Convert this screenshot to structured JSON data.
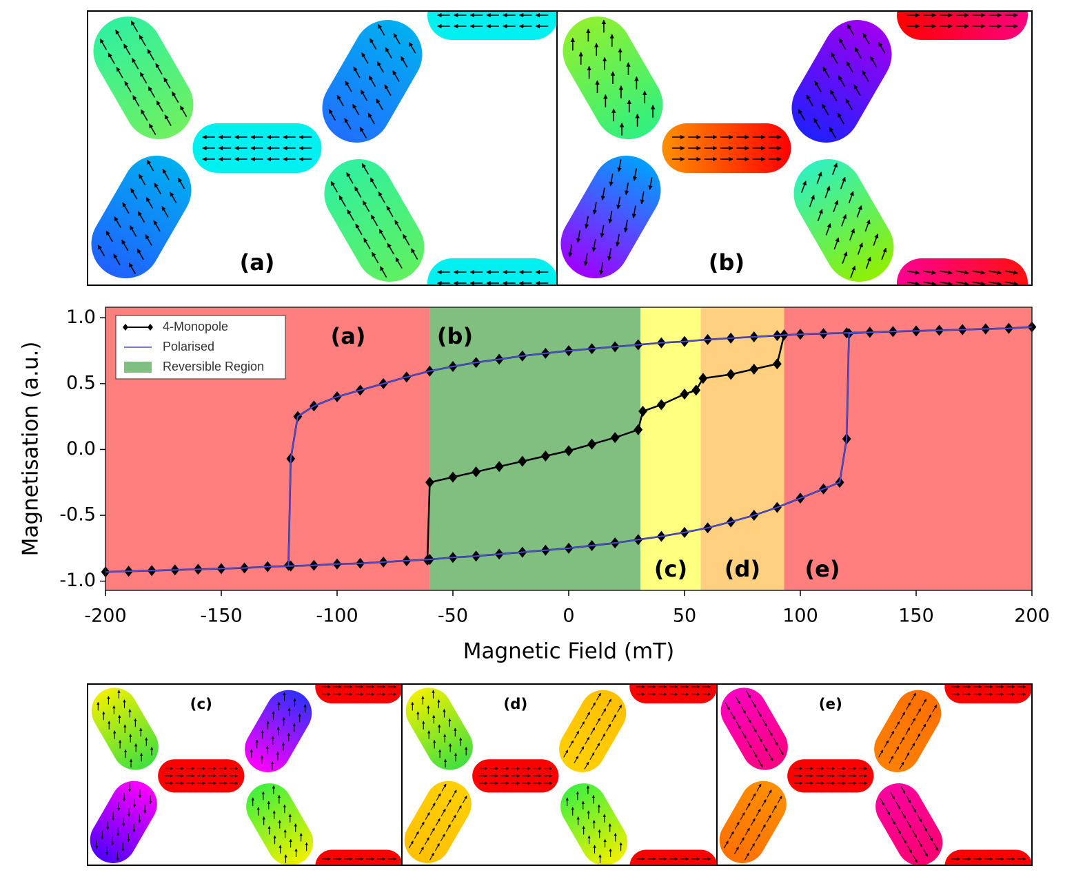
{
  "chart_data": {
    "type": "line",
    "xlabel": "Magnetic Field (mT)",
    "ylabel": "Magnetisation (a.u.)",
    "xlim": [
      -200,
      200
    ],
    "xticks": [
      -200,
      -150,
      -100,
      -50,
      0,
      50,
      100,
      150,
      200
    ],
    "ylim": [
      -1.07,
      1.08
    ],
    "yticks": [
      {
        "value": -1,
        "label": "-1.0"
      },
      -0.5,
      {
        "value": 0,
        "label": "0.0"
      },
      0.5,
      {
        "value": 1,
        "label": "1.0"
      }
    ],
    "legend": "upper left",
    "regions": [
      {
        "x0": -200,
        "x1": -60,
        "color": "#ff7f7f"
      },
      {
        "x0": -60,
        "x1": 31,
        "color": "#80bf80",
        "name": "Reversible Region"
      },
      {
        "x0": 31,
        "x1": 57,
        "color": "#ffff80"
      },
      {
        "x0": 57,
        "x1": 93,
        "color": "#ffd080"
      },
      {
        "x0": 93,
        "x1": 200,
        "color": "#ff7f7f"
      }
    ],
    "annotations": [
      "(a)",
      "(b)",
      "(c)",
      "(d)",
      "(e)"
    ],
    "series": [
      {
        "name": "4-Monopole",
        "color": "#000000",
        "marker": "diamond",
        "x": [
          -200,
          -190,
          -180,
          -170,
          -160,
          -150,
          -140,
          -130,
          -120,
          -110,
          -100,
          -90,
          -80,
          -70,
          -60,
          -50,
          -40,
          -30,
          -20,
          -10,
          0,
          10,
          20,
          30,
          40,
          50,
          60,
          70,
          80,
          90,
          100,
          110,
          117,
          120,
          121,
          130,
          140,
          150,
          160,
          170,
          180,
          190,
          200,
          null,
          190,
          180,
          170,
          160,
          150,
          140,
          130,
          120,
          110,
          100,
          90,
          80,
          70,
          60,
          50,
          40,
          30,
          20,
          10,
          0,
          -10,
          -20,
          -30,
          -40,
          -50,
          -60,
          -70,
          -80,
          -90,
          -100,
          -110,
          -117,
          -120,
          -121,
          null,
          -61,
          -60,
          -50,
          -40,
          -30,
          -20,
          -10,
          0,
          10,
          20,
          30,
          32,
          40,
          50,
          55,
          58,
          70,
          80,
          90,
          93
        ],
        "values": [
          -0.93,
          -0.925,
          -0.92,
          -0.915,
          -0.91,
          -0.905,
          -0.9,
          -0.89,
          -0.885,
          -0.88,
          -0.87,
          -0.865,
          -0.855,
          -0.845,
          -0.835,
          -0.82,
          -0.81,
          -0.795,
          -0.78,
          -0.765,
          -0.75,
          -0.73,
          -0.71,
          -0.685,
          -0.66,
          -0.63,
          -0.595,
          -0.55,
          -0.5,
          -0.44,
          -0.37,
          -0.3,
          -0.25,
          0.08,
          0.88,
          0.89,
          0.895,
          0.9,
          0.905,
          0.91,
          0.915,
          0.92,
          0.93,
          null,
          0.92,
          0.915,
          0.91,
          0.905,
          0.9,
          0.895,
          0.89,
          0.885,
          0.88,
          0.875,
          0.865,
          0.855,
          0.845,
          0.835,
          0.82,
          0.81,
          0.795,
          0.78,
          0.765,
          0.75,
          0.73,
          0.71,
          0.685,
          0.66,
          0.63,
          0.595,
          0.55,
          0.5,
          0.45,
          0.4,
          0.33,
          0.25,
          -0.07,
          -0.88,
          null,
          -0.84,
          -0.25,
          -0.21,
          -0.17,
          -0.13,
          -0.09,
          -0.05,
          -0.01,
          0.04,
          0.09,
          0.15,
          0.29,
          0.34,
          0.42,
          0.45,
          0.54,
          0.57,
          0.61,
          0.65,
          0.87
        ]
      },
      {
        "name": "Polarised",
        "color": "#4b4bdc",
        "x": [
          -200,
          -190,
          -180,
          -170,
          -160,
          -150,
          -140,
          -130,
          -120,
          -110,
          -100,
          -90,
          -80,
          -70,
          -60,
          -50,
          -40,
          -30,
          -20,
          -10,
          0,
          10,
          20,
          30,
          40,
          50,
          60,
          70,
          80,
          90,
          100,
          110,
          117,
          120,
          121,
          130,
          140,
          150,
          160,
          170,
          180,
          190,
          200,
          null,
          190,
          180,
          170,
          160,
          150,
          140,
          130,
          120,
          110,
          100,
          90,
          80,
          70,
          60,
          50,
          40,
          30,
          20,
          10,
          0,
          -10,
          -20,
          -30,
          -40,
          -50,
          -60,
          -70,
          -80,
          -90,
          -100,
          -110,
          -117,
          -120,
          -121
        ],
        "values": [
          -0.93,
          -0.925,
          -0.92,
          -0.915,
          -0.91,
          -0.905,
          -0.9,
          -0.89,
          -0.885,
          -0.88,
          -0.87,
          -0.865,
          -0.855,
          -0.845,
          -0.835,
          -0.82,
          -0.81,
          -0.795,
          -0.78,
          -0.765,
          -0.75,
          -0.73,
          -0.71,
          -0.685,
          -0.66,
          -0.63,
          -0.595,
          -0.55,
          -0.5,
          -0.44,
          -0.37,
          -0.3,
          -0.25,
          0.08,
          0.88,
          0.89,
          0.895,
          0.9,
          0.905,
          0.91,
          0.915,
          0.92,
          0.93,
          null,
          0.92,
          0.915,
          0.91,
          0.905,
          0.9,
          0.895,
          0.89,
          0.885,
          0.88,
          0.875,
          0.865,
          0.855,
          0.845,
          0.835,
          0.82,
          0.81,
          0.795,
          0.78,
          0.765,
          0.75,
          0.73,
          0.71,
          0.685,
          0.66,
          0.63,
          0.595,
          0.55,
          0.5,
          0.45,
          0.4,
          0.33,
          0.25,
          -0.07,
          -0.88
        ]
      }
    ]
  },
  "panels": [
    "(a)",
    "(b)",
    "(c)",
    "(d)",
    "(e)"
  ]
}
